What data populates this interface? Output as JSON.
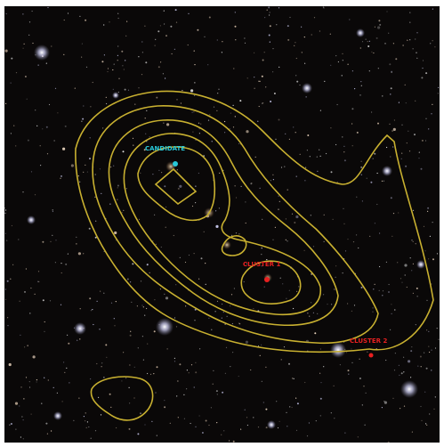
{
  "image": {
    "background_color": "#0a0808",
    "contour_color": "#c8b030"
  },
  "sources": [
    {
      "label": "CANDIDATE",
      "color": "#28c8d8"
    },
    {
      "label": "CLUSTER 1",
      "color": "#e82020"
    },
    {
      "label": "CLUSTER 2",
      "color": "#e82020"
    }
  ]
}
